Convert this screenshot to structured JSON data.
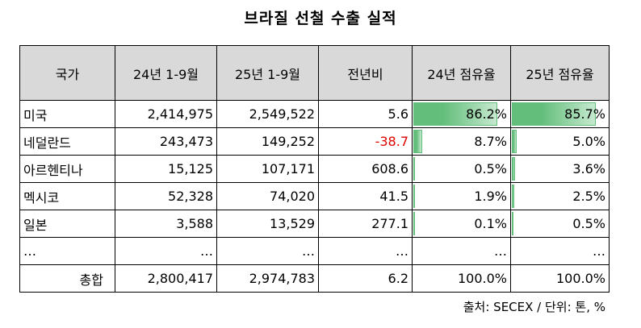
{
  "title": "브라질 선철 수출 실적",
  "columns": [
    "국가",
    "24년 1-9월",
    "25년 1-9월",
    "전년비",
    "24년 점유율",
    "25년 점유율"
  ],
  "rows": [
    {
      "country": "미국",
      "y24": "2,414,975",
      "y25": "2,549,522",
      "yoy": "5.6",
      "share24": "86.2%",
      "share25": "85.7%",
      "share24_value": 86.2,
      "share25_value": 85.7
    },
    {
      "country": "네덜란드",
      "y24": "243,473",
      "y25": "149,252",
      "yoy": "-38.7",
      "share24": "8.7%",
      "share25": "5.0%",
      "share24_value": 8.7,
      "share25_value": 5.0
    },
    {
      "country": "아르헨티나",
      "y24": "15,125",
      "y25": "107,171",
      "yoy": "608.6",
      "share24": "0.5%",
      "share25": "3.6%",
      "share24_value": 0.5,
      "share25_value": 3.6
    },
    {
      "country": "멕시코",
      "y24": "52,328",
      "y25": "74,020",
      "yoy": "41.5",
      "share24": "1.9%",
      "share25": "2.5%",
      "share24_value": 1.9,
      "share25_value": 2.5
    },
    {
      "country": "일본",
      "y24": "3,588",
      "y25": "13,529",
      "yoy": "277.1",
      "share24": "0.1%",
      "share25": "0.5%",
      "share24_value": 0.1,
      "share25_value": 0.5
    },
    {
      "country": "…",
      "y24": "…",
      "y25": "…",
      "yoy": "…",
      "share24": "…",
      "share25": "…",
      "share24_value": null,
      "share25_value": null
    }
  ],
  "total": {
    "label": "총합",
    "y24": "2,800,417",
    "y25": "2,974,783",
    "yoy": "6.2",
    "share24": "100.0%",
    "share25": "100.0%"
  },
  "source": "출처: SECEX / 단위: 톤, %",
  "colors": {
    "negative": "#e00000",
    "header_bg": "#d9d9d9",
    "databar": "#63be7b"
  }
}
